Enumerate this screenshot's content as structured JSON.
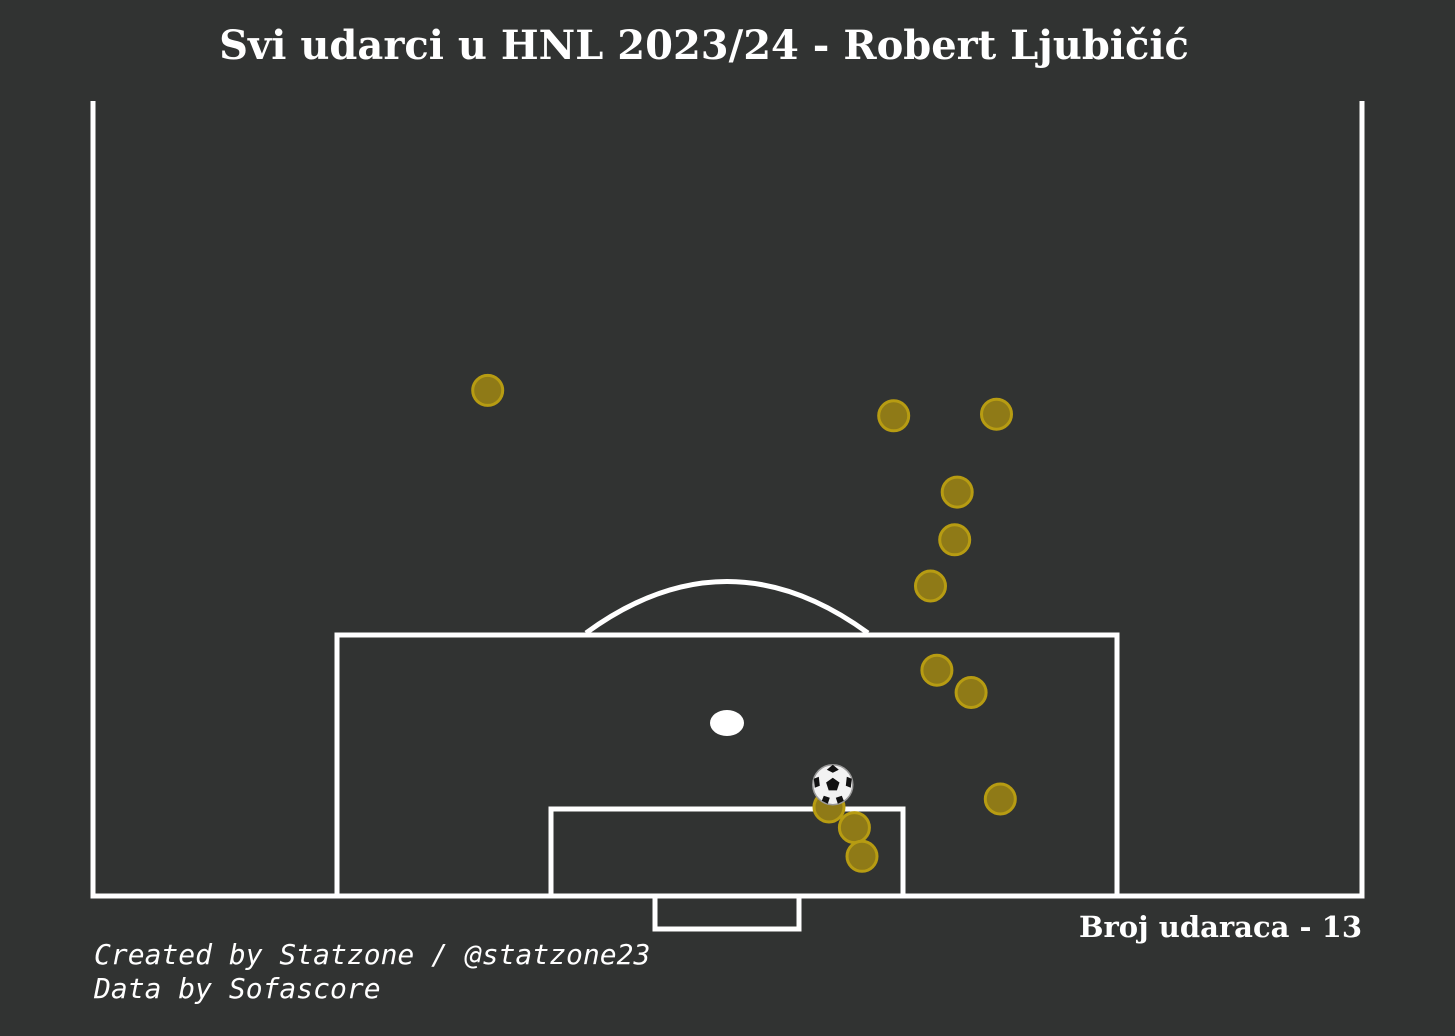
{
  "header": {
    "title": "Svi udarci u HNL 2023/24 - Robert Ljubičić"
  },
  "summary": {
    "count_label": "Broj udaraca - 13"
  },
  "footer": {
    "credit_line": "Created by Statzone / @statzone23",
    "data_line": "Data by Sofascore"
  },
  "colors": {
    "background": "#313332",
    "pitch_lines": "#ffffff",
    "shot_fill": "#8f7a17",
    "shot_edge": "#b79c12",
    "goal_marker": "soccer-ball-icon"
  },
  "chart_data": {
    "type": "scatter",
    "title": "Svi udarci u HNL 2023/24 - Robert Ljubičić",
    "xlabel": "",
    "ylabel": "",
    "pitch": "half-pitch, attacking toward bottom goal",
    "xlim": [
      0,
      100
    ],
    "ylim": [
      50,
      100
    ],
    "legend": "none",
    "grid": false,
    "shots": [
      {
        "x": 31.1,
        "y": 68.2,
        "goal": false
      },
      {
        "x": 63.1,
        "y": 69.8,
        "goal": false
      },
      {
        "x": 71.2,
        "y": 69.7,
        "goal": false
      },
      {
        "x": 68.1,
        "y": 74.6,
        "goal": false
      },
      {
        "x": 67.9,
        "y": 77.6,
        "goal": false
      },
      {
        "x": 66.0,
        "y": 80.5,
        "goal": false
      },
      {
        "x": 66.5,
        "y": 85.8,
        "goal": false
      },
      {
        "x": 69.2,
        "y": 87.2,
        "goal": false
      },
      {
        "x": 71.5,
        "y": 93.9,
        "goal": false
      },
      {
        "x": 58.0,
        "y": 94.4,
        "goal": false
      },
      {
        "x": 60.0,
        "y": 95.7,
        "goal": false
      },
      {
        "x": 60.6,
        "y": 97.5,
        "goal": false
      },
      {
        "x": 58.3,
        "y": 93.0,
        "goal": true
      }
    ]
  }
}
